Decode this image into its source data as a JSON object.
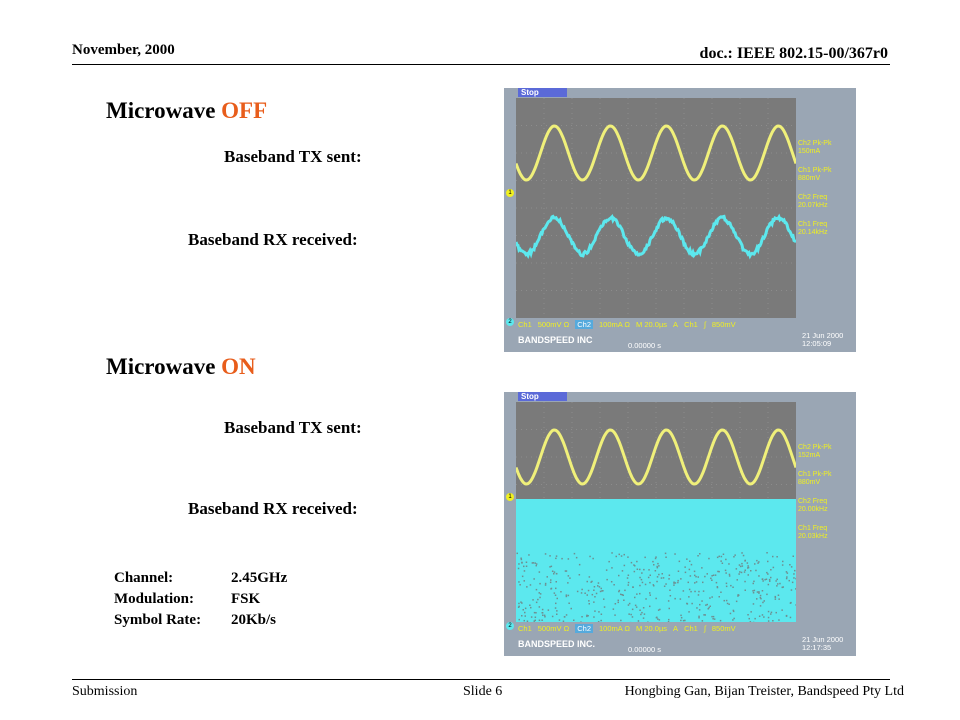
{
  "header": {
    "date": "November, 2000",
    "doc_id": "doc.: IEEE 802.15-00/367r0"
  },
  "sections": [
    {
      "title_prefix": "Microwave",
      "title_state": "OFF",
      "tx_label": "Baseband TX sent:",
      "rx_label": "Baseband RX received:"
    },
    {
      "title_prefix": "Microwave",
      "title_state": "ON",
      "tx_label": "Baseband TX sent:",
      "rx_label": "Baseband RX received:"
    }
  ],
  "params": [
    {
      "key": "Channel:",
      "value": "2.45GHz"
    },
    {
      "key": "Modulation:",
      "value": "FSK"
    },
    {
      "key": "Symbol Rate:",
      "value": "20Kb/s"
    }
  ],
  "scopes": [
    {
      "stop": "Stop",
      "readouts": [
        "Ch2 Pk-Pk",
        "150mA",
        "Ch1 Pk-Pk",
        "880mV",
        "Ch2 Freq",
        "20.07kHz",
        "Ch1 Freq",
        "20.14kHz"
      ],
      "bottom": [
        "Ch1",
        "500mV Ω",
        "Ch2",
        "100mA Ω",
        "M 20.0µs",
        "A",
        "Ch1",
        "∫",
        "850mV"
      ],
      "brand": "BANDSPEED INC",
      "trigger": "0.00000 s",
      "date": "21 Jun 2000",
      "time": "12:05:09"
    },
    {
      "stop": "Stop",
      "readouts": [
        "Ch2 Pk-Pk",
        "152mA",
        "Ch1 Pk-Pk",
        "880mV",
        "Ch2 Freq",
        "20.00kHz",
        "Ch1 Freq",
        "20.03kHz"
      ],
      "bottom": [
        "Ch1",
        "500mV Ω",
        "Ch2",
        "100mA Ω",
        "M 20.0µs",
        "A",
        "Ch1",
        "∫",
        "850mV"
      ],
      "brand": "BANDSPEED INC.",
      "trigger": "0.00000 s",
      "date": "21 Jun 2000",
      "time": "12:17:35"
    }
  ],
  "footer": {
    "left": "Submission",
    "center": "Slide 6",
    "right": "Hongbing Gan, Bijan Treister, Bandspeed Pty Ltd"
  },
  "colors": {
    "accent": "#e85d1b",
    "ch1_trace": "#f0f07a",
    "ch2_trace": "#5ce8ee",
    "scope_bg": "#7a7a7a"
  }
}
